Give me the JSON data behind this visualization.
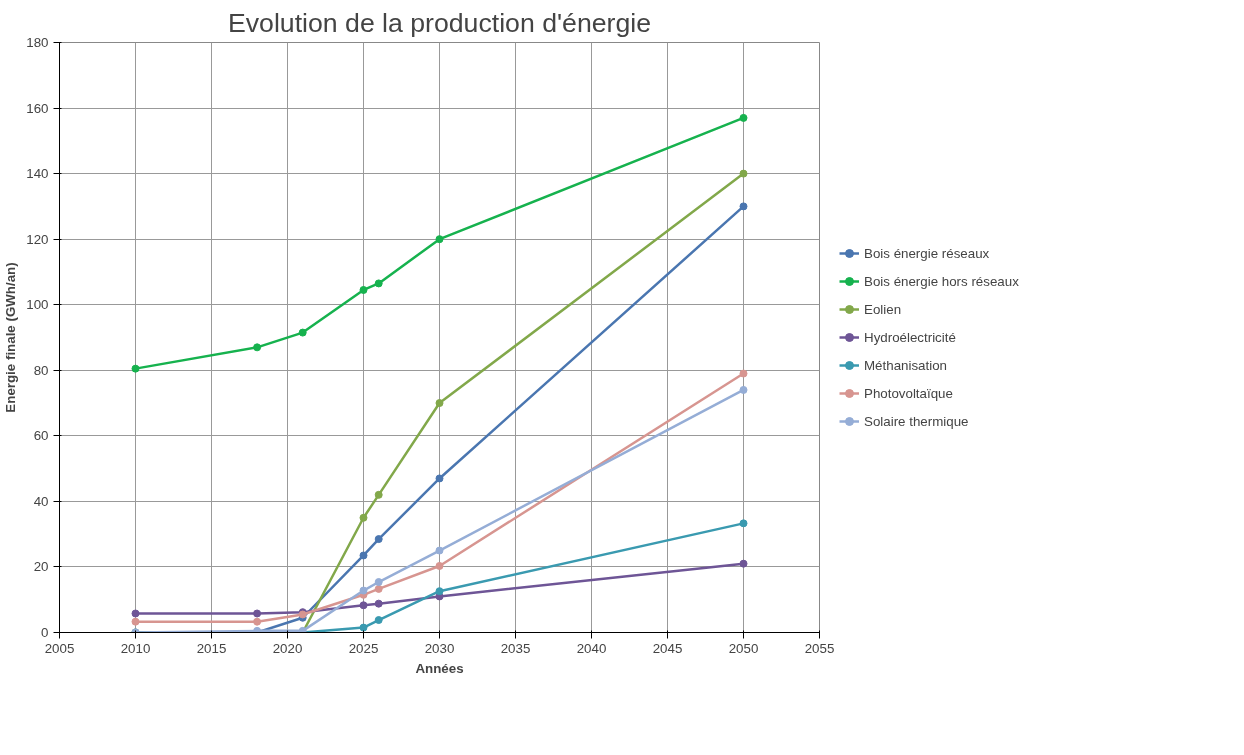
{
  "chart_data": {
    "type": "line",
    "title": "Evolution de la production d'énergie",
    "xlabel": "Années",
    "ylabel": "Energie finale (GWh/an)",
    "x": [
      2010,
      2018,
      2021,
      2025,
      2026,
      2030,
      2050
    ],
    "xlim": [
      2005,
      2055
    ],
    "xticks": [
      2005,
      2010,
      2015,
      2020,
      2025,
      2030,
      2035,
      2040,
      2045,
      2050,
      2055
    ],
    "ylim": [
      0,
      180
    ],
    "yticks": [
      0,
      20,
      40,
      60,
      80,
      100,
      120,
      140,
      160,
      180
    ],
    "grid": true,
    "legend": "right",
    "marker": "circle",
    "line_style": "solid",
    "series": [
      {
        "name": "Bois énergie réseaux",
        "color": "#4a76b0",
        "values": [
          0,
          0,
          4.5,
          23.5,
          28.5,
          47,
          130
        ]
      },
      {
        "name": "Bois énergie hors réseaux",
        "color": "#16b24e",
        "values": [
          80.5,
          87,
          91.5,
          104.5,
          106.5,
          120,
          157
        ]
      },
      {
        "name": "Eolien",
        "color": "#82a84a",
        "values": [
          0,
          0,
          0,
          35,
          42,
          70,
          140
        ]
      },
      {
        "name": "Hydroélectricité",
        "color": "#6e5596",
        "values": [
          5.8,
          5.8,
          6.2,
          8.3,
          8.8,
          11,
          21
        ]
      },
      {
        "name": "Méthanisation",
        "color": "#3a9ab0",
        "values": [
          0,
          0,
          0,
          1.5,
          3.8,
          12.6,
          33.3
        ]
      },
      {
        "name": "Photovoltaïque",
        "color": "#d79590",
        "values": [
          3.3,
          3.3,
          5.5,
          11.5,
          13.3,
          20.3,
          79
        ]
      },
      {
        "name": "Solaire thermique",
        "color": "#95add6",
        "values": [
          0,
          0.5,
          0.5,
          12.8,
          15.4,
          25,
          74
        ]
      }
    ]
  }
}
